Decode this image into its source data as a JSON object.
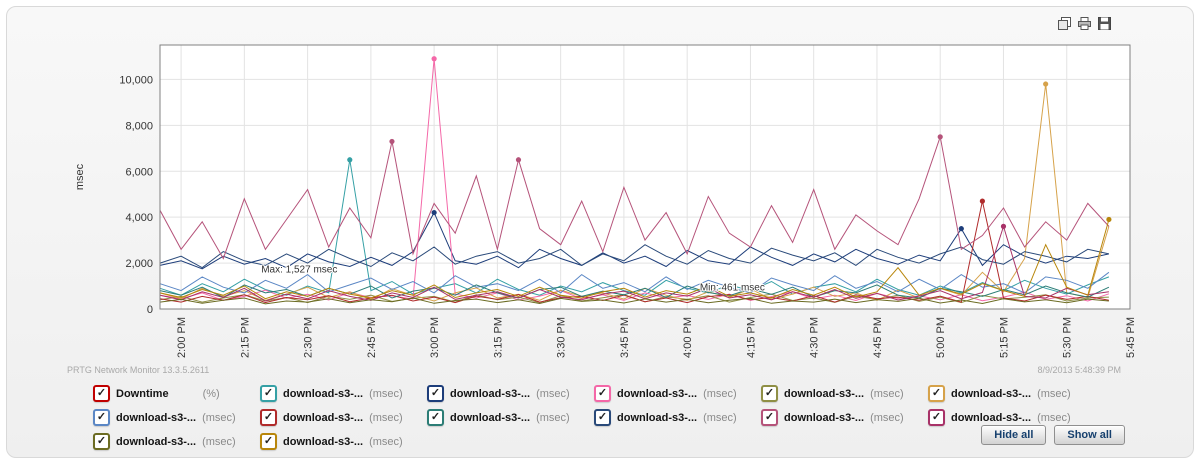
{
  "toolbar": {
    "icons": [
      "clone-icon",
      "print-icon",
      "save-icon"
    ]
  },
  "footer": {
    "version": "PRTG Network Monitor 13.3.5.2611",
    "timestamp": "8/9/2013 5:48:39 PM"
  },
  "buttons": {
    "hide_all": "Hide all",
    "show_all": "Show all"
  },
  "legend_meta": {
    "check_glyph": "✓"
  },
  "chart_data": {
    "type": "line",
    "title": "",
    "xlabel": "",
    "ylabel": "msec",
    "grid": true,
    "legend_position": "bottom",
    "ylim": [
      0,
      11500
    ],
    "xlim": [
      0,
      230
    ],
    "y_ticks": [
      {
        "value": 0,
        "label": "0"
      },
      {
        "value": 2000,
        "label": "2,000"
      },
      {
        "value": 4000,
        "label": "4,000"
      },
      {
        "value": 6000,
        "label": "6,000"
      },
      {
        "value": 8000,
        "label": "8,000"
      },
      {
        "value": 10000,
        "label": "10,000"
      }
    ],
    "x_ticks": [
      {
        "minute": 5,
        "label": "2:00 PM"
      },
      {
        "minute": 20,
        "label": "2:15 PM"
      },
      {
        "minute": 35,
        "label": "2:30 PM"
      },
      {
        "minute": 50,
        "label": "2:45 PM"
      },
      {
        "minute": 65,
        "label": "3:00 PM"
      },
      {
        "minute": 80,
        "label": "3:15 PM"
      },
      {
        "minute": 95,
        "label": "3:30 PM"
      },
      {
        "minute": 110,
        "label": "3:45 PM"
      },
      {
        "minute": 125,
        "label": "4:00 PM"
      },
      {
        "minute": 140,
        "label": "4:15 PM"
      },
      {
        "minute": 155,
        "label": "4:30 PM"
      },
      {
        "minute": 170,
        "label": "4:45 PM"
      },
      {
        "minute": 185,
        "label": "5:00 PM"
      },
      {
        "minute": 200,
        "label": "5:15 PM"
      },
      {
        "minute": 215,
        "label": "5:30 PM"
      },
      {
        "minute": 230,
        "label": "5:45 PM"
      }
    ],
    "x": [
      0,
      5,
      10,
      15,
      20,
      25,
      30,
      35,
      40,
      45,
      50,
      55,
      60,
      65,
      70,
      75,
      80,
      85,
      90,
      95,
      100,
      105,
      110,
      115,
      120,
      125,
      130,
      135,
      140,
      145,
      150,
      155,
      160,
      165,
      170,
      175,
      180,
      185,
      190,
      195,
      200,
      205,
      210,
      215,
      220,
      225
    ],
    "annotations": [
      {
        "text": "Max: 1,527 msec",
        "minute": 24,
        "value": 1600
      },
      {
        "text": "Min: 461 msec",
        "minute": 128,
        "value": 800
      }
    ],
    "series": [
      {
        "name": "Downtime",
        "unit": "(%)",
        "wide_gap": true,
        "color": "#c00000",
        "markers": [],
        "values": [
          0,
          0,
          0,
          0,
          0,
          0,
          0,
          0,
          0,
          0,
          0,
          0,
          0,
          0,
          0,
          0,
          0,
          0,
          0,
          0,
          0,
          0,
          0,
          0,
          0,
          0,
          0,
          0,
          0,
          0,
          0,
          0,
          0,
          0,
          0,
          0,
          0,
          0,
          0,
          0,
          0,
          0,
          0,
          0,
          0,
          0
        ]
      },
      {
        "name": "download-s3-...",
        "unit": "(msec)",
        "color": "#35a0a5",
        "markers": [
          9
        ],
        "values": [
          900,
          600,
          1100,
          750,
          1300,
          850,
          600,
          1000,
          700,
          6500,
          800,
          1200,
          650,
          900,
          1100,
          700,
          1300,
          850,
          600,
          1000,
          750,
          1150,
          800,
          600,
          1250,
          900,
          700,
          1050,
          800,
          1200,
          650,
          950,
          1100,
          750,
          1300,
          850,
          600,
          1000,
          700,
          1150,
          800,
          1250,
          900,
          650,
          1050,
          1400
        ]
      },
      {
        "name": "download-s3-...",
        "unit": "(msec)",
        "color": "#1d3d7a",
        "markers": [
          13,
          38
        ],
        "values": [
          1900,
          2100,
          1750,
          2300,
          1950,
          2200,
          1800,
          2400,
          2050,
          1850,
          2250,
          1900,
          2500,
          4200,
          2100,
          1950,
          2300,
          1800,
          2600,
          2200,
          1900,
          2450,
          2000,
          2300,
          1850,
          2550,
          2100,
          1950,
          2700,
          2250,
          1900,
          2400,
          2050,
          2600,
          2200,
          1950,
          2350,
          2100,
          3500,
          1900,
          2800,
          2300,
          2000,
          2300,
          2200,
          2400
        ]
      },
      {
        "name": "download-s3-...",
        "unit": "(msec)",
        "color": "#f468a8",
        "markers": [
          13
        ],
        "values": [
          600,
          450,
          700,
          380,
          550,
          820,
          470,
          640,
          390,
          720,
          500,
          580,
          430,
          10900,
          650,
          480,
          700,
          390,
          560,
          800,
          450,
          620,
          380,
          700,
          480,
          590,
          420,
          650,
          380,
          540,
          760,
          440,
          600,
          370,
          680,
          460,
          570,
          400,
          620,
          360,
          520,
          730,
          420,
          580,
          350,
          660
        ]
      },
      {
        "name": "download-s3-...",
        "unit": "(msec)",
        "color": "#8f8f45",
        "markers": [],
        "values": [
          400,
          550,
          300,
          480,
          620,
          350,
          500,
          280,
          560,
          420,
          600,
          330,
          470,
          550,
          300,
          620,
          400,
          520,
          280,
          580,
          350,
          490,
          630,
          310,
          540,
          420,
          580,
          300,
          500,
          650,
          370,
          480,
          290,
          560,
          410,
          600,
          330,
          520,
          280,
          590,
          440,
          510,
          620,
          350,
          480,
          520
        ]
      },
      {
        "name": "download-s3-...",
        "unit": "(msec)",
        "color": "#d6a24a",
        "markers": [
          42
        ],
        "values": [
          700,
          450,
          900,
          550,
          800,
          380,
          650,
          950,
          500,
          750,
          420,
          880,
          600,
          350,
          700,
          920,
          480,
          640,
          380,
          820,
          550,
          700,
          430,
          900,
          600,
          380,
          750,
          500,
          880,
          420,
          650,
          950,
          550,
          700,
          380,
          820,
          480,
          900,
          600,
          1600,
          750,
          2200,
          9800,
          700,
          500,
          3600
        ]
      },
      {
        "name": "download-s3-...",
        "unit": "(msec)",
        "color": "#5b87c5",
        "markers": [],
        "values": [
          1100,
          800,
          1400,
          950,
          700,
          1250,
          900,
          1500,
          750,
          1050,
          1350,
          850,
          1200,
          700,
          1450,
          950,
          1100,
          800,
          1300,
          700,
          1500,
          900,
          1150,
          750,
          1400,
          850,
          1250,
          950,
          700,
          1350,
          1050,
          800,
          1450,
          900,
          1200,
          750,
          1300,
          850,
          1500,
          950,
          1100,
          700,
          1400,
          1250,
          900,
          1600
        ]
      },
      {
        "name": "download-s3-...",
        "unit": "(msec)",
        "color": "#b02b2b",
        "markers": [
          39
        ],
        "values": [
          450,
          300,
          550,
          380,
          620,
          280,
          500,
          400,
          580,
          320,
          480,
          600,
          350,
          520,
          280,
          560,
          420,
          630,
          300,
          490,
          550,
          370,
          600,
          320,
          480,
          280,
          540,
          630,
          400,
          500,
          350,
          580,
          300,
          620,
          450,
          520,
          380,
          560,
          300,
          4700,
          480,
          350,
          600,
          420,
          550,
          380
        ]
      },
      {
        "name": "download-s3-...",
        "unit": "(msec)",
        "color": "#2c7d76",
        "markers": [],
        "values": [
          800,
          600,
          950,
          500,
          1050,
          700,
          850,
          550,
          900,
          650,
          1000,
          480,
          780,
          920,
          600,
          1050,
          700,
          480,
          850,
          950,
          550,
          780,
          620,
          900,
          500,
          1000,
          720,
          580,
          880,
          640,
          950,
          520,
          800,
          700,
          1050,
          600,
          480,
          900,
          750,
          550,
          850,
          620,
          1000,
          700,
          520,
          950
        ]
      },
      {
        "name": "download-s3-...",
        "unit": "(msec)",
        "color": "#2a4a7a",
        "markers": [],
        "values": [
          2000,
          2300,
          1800,
          2500,
          2100,
          1900,
          2400,
          2000,
          2600,
          2200,
          1850,
          2450,
          2100,
          2700,
          1950,
          2300,
          2500,
          2000,
          2200,
          2600,
          1900,
          2400,
          2100,
          2800,
          2300,
          1950,
          2550,
          2200,
          2000,
          2650,
          2350,
          2100,
          2450,
          1900,
          2600,
          2250,
          2000,
          2400,
          2700,
          2150,
          1950,
          2500,
          2300,
          2050,
          2600,
          2400
        ]
      },
      {
        "name": "download-s3-...",
        "unit": "(msec)",
        "color": "#b5537a",
        "markers": [
          11,
          17,
          37
        ],
        "values": [
          4300,
          2600,
          3800,
          2200,
          4800,
          2600,
          3900,
          5200,
          2700,
          4400,
          3100,
          7300,
          2400,
          4600,
          3300,
          5800,
          2600,
          6500,
          3500,
          2800,
          4700,
          2500,
          5300,
          3000,
          4200,
          2400,
          4900,
          3300,
          2700,
          4500,
          2900,
          5200,
          2600,
          4100,
          3400,
          2800,
          4800,
          7500,
          2600,
          3200,
          4400,
          2700,
          3800,
          3000,
          4600,
          3600
        ]
      },
      {
        "name": "download-s3-...",
        "unit": "(msec)",
        "color": "#a83268",
        "markers": [
          40
        ],
        "values": [
          600,
          400,
          750,
          500,
          900,
          350,
          650,
          450,
          800,
          550,
          380,
          700,
          500,
          950,
          420,
          600,
          750,
          480,
          850,
          520,
          400,
          650,
          780,
          450,
          700,
          560,
          900,
          480,
          620,
          400,
          750,
          520,
          850,
          460,
          680,
          390,
          560,
          800,
          440,
          720,
          3600,
          550,
          480,
          900,
          620,
          750
        ]
      },
      {
        "name": "download-s3-...",
        "unit": "(msec)",
        "color": "#6b6b22",
        "markers": [],
        "values": [
          300,
          420,
          250,
          380,
          480,
          220,
          350,
          300,
          450,
          270,
          400,
          320,
          480,
          250,
          370,
          430,
          280,
          400,
          240,
          460,
          330,
          390,
          260,
          440,
          300,
          420,
          270,
          380,
          460,
          250,
          350,
          300,
          430,
          280,
          410,
          330,
          470,
          260,
          390,
          240,
          450,
          310,
          400,
          270,
          430,
          350
        ]
      },
      {
        "name": "download-s3-...",
        "unit": "(msec)",
        "color": "#b8860b",
        "markers": [
          45
        ],
        "values": [
          700,
          500,
          850,
          600,
          1000,
          450,
          750,
          550,
          900,
          650,
          480,
          800,
          600,
          1050,
          500,
          700,
          850,
          550,
          950,
          600,
          480,
          750,
          900,
          520,
          800,
          650,
          1000,
          550,
          700,
          480,
          850,
          600,
          950,
          520,
          750,
          1800,
          600,
          900,
          650,
          1100,
          800,
          550,
          2800,
          950,
          600,
          3900
        ]
      }
    ]
  }
}
